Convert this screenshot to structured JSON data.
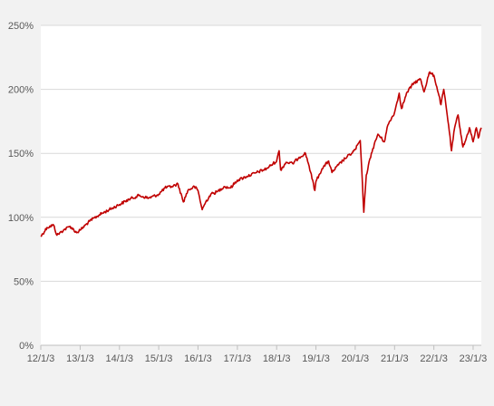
{
  "chart_data": {
    "type": "line",
    "title": "",
    "xlabel": "",
    "ylabel": "",
    "grid": "horizontal",
    "legend": "none",
    "ylim": [
      0,
      250
    ],
    "yticks": [
      0,
      50,
      100,
      150,
      200,
      250
    ],
    "ytick_labels": [
      "0%",
      "50%",
      "100%",
      "150%",
      "200%",
      "250%"
    ],
    "xlim": [
      "2012-01-03",
      "2023-03-20"
    ],
    "xticks": [
      "2012-01-03",
      "2013-01-03",
      "2014-01-03",
      "2015-01-03",
      "2016-01-03",
      "2017-01-03",
      "2018-01-03",
      "2019-01-03",
      "2020-01-03",
      "2021-01-03",
      "2022-01-03",
      "2023-01-03"
    ],
    "xtick_labels": [
      "12/1/3",
      "13/1/3",
      "14/1/3",
      "15/1/3",
      "16/1/3",
      "17/1/3",
      "18/1/3",
      "19/1/3",
      "20/1/3",
      "21/1/3",
      "22/1/3",
      "23/1/3"
    ],
    "series": [
      {
        "color": "#c00000",
        "x": [
          "2012-01-03",
          "2012-03-01",
          "2012-05-01",
          "2012-06-01",
          "2012-08-01",
          "2012-10-01",
          "2012-12-01",
          "2013-01-03",
          "2013-04-01",
          "2013-07-01",
          "2013-10-01",
          "2014-01-03",
          "2014-04-01",
          "2014-07-01",
          "2014-10-01",
          "2015-01-03",
          "2015-03-01",
          "2015-05-01",
          "2015-07-01",
          "2015-08-20",
          "2015-10-01",
          "2015-12-01",
          "2016-01-03",
          "2016-02-11",
          "2016-03-15",
          "2016-05-01",
          "2016-07-01",
          "2016-09-01",
          "2016-11-01",
          "2017-01-03",
          "2017-04-01",
          "2017-07-01",
          "2017-10-01",
          "2018-01-03",
          "2018-01-26",
          "2018-02-09",
          "2018-04-01",
          "2018-06-01",
          "2018-08-01",
          "2018-09-28",
          "2018-11-01",
          "2018-12-24",
          "2019-01-03",
          "2019-03-01",
          "2019-05-01",
          "2019-06-01",
          "2019-08-01",
          "2019-10-01",
          "2019-12-01",
          "2020-01-03",
          "2020-02-19",
          "2020-03-23",
          "2020-04-15",
          "2020-06-01",
          "2020-08-01",
          "2020-09-30",
          "2020-11-01",
          "2021-01-03",
          "2021-02-15",
          "2021-03-08",
          "2021-05-01",
          "2021-07-01",
          "2021-09-01",
          "2021-10-04",
          "2021-11-20",
          "2022-01-03",
          "2022-02-20",
          "2022-03-10",
          "2022-04-05",
          "2022-05-20",
          "2022-06-16",
          "2022-07-15",
          "2022-08-16",
          "2022-09-30",
          "2022-10-25",
          "2022-11-30",
          "2023-01-03",
          "2023-02-02",
          "2023-02-20",
          "2023-03-20"
        ],
        "values": [
          85,
          92,
          94,
          86,
          90,
          93,
          88,
          90,
          97,
          102,
          106,
          110,
          114,
          117,
          115,
          118,
          123,
          124,
          126,
          112,
          121,
          124,
          121,
          106,
          112,
          118,
          120,
          124,
          123,
          129,
          132,
          135,
          138,
          144,
          152,
          137,
          143,
          142,
          147,
          150,
          140,
          121,
          128,
          138,
          144,
          135,
          141,
          146,
          150,
          153,
          160,
          104,
          133,
          150,
          165,
          159,
          172,
          182,
          197,
          185,
          198,
          205,
          208,
          198,
          213,
          211,
          195,
          188,
          200,
          172,
          152,
          170,
          180,
          155,
          160,
          170,
          159,
          170,
          162,
          170
        ]
      }
    ]
  }
}
